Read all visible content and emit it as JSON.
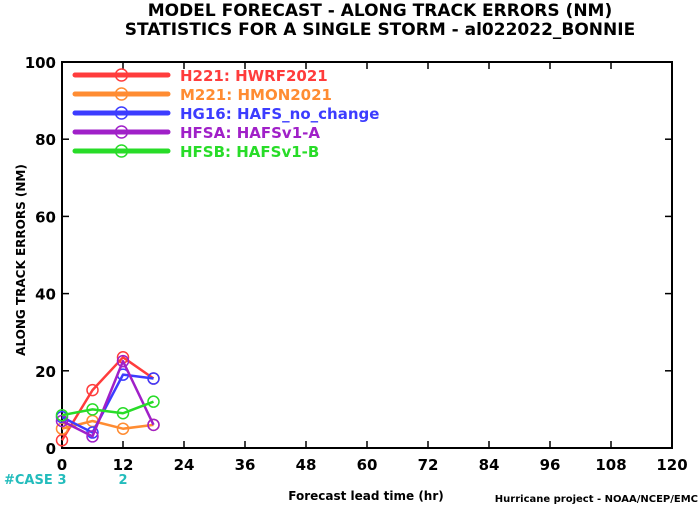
{
  "chart_data": {
    "type": "line",
    "title": "MODEL FORECAST - ALONG TRACK ERRORS (NM)",
    "subtitle": "STATISTICS FOR A SINGLE STORM - al022022_BONNIE",
    "xlabel": "Forecast lead time (hr)",
    "ylabel": "ALONG TRACK ERRORS (NM)",
    "xlim": [
      0,
      120
    ],
    "ylim": [
      0,
      100
    ],
    "x_ticks": [
      0,
      12,
      24,
      36,
      48,
      60,
      72,
      84,
      96,
      108,
      120
    ],
    "y_ticks": [
      0,
      20,
      40,
      60,
      80,
      100
    ],
    "legend_position": "top-left",
    "x": [
      0,
      6,
      12,
      18
    ],
    "series": [
      {
        "code": "H221",
        "label": "HWRF2021",
        "color": "#ff3c3c",
        "values": [
          2,
          15,
          23.5,
          18
        ]
      },
      {
        "code": "M221",
        "label": "HMON2021",
        "color": "#ff8c32",
        "values": [
          5,
          7,
          5,
          6
        ]
      },
      {
        "code": "HG16",
        "label": "HAFS_no_change",
        "color": "#3c3cff",
        "values": [
          8,
          4,
          19,
          18
        ]
      },
      {
        "code": "HFSA",
        "label": "HAFSv1-A",
        "color": "#a020c8",
        "values": [
          7,
          3,
          22.5,
          6
        ]
      },
      {
        "code": "HFSB",
        "label": "HAFSv1-B",
        "color": "#28dc28",
        "values": [
          8.5,
          10,
          9,
          12
        ]
      }
    ],
    "cases": {
      "label": "#CASE",
      "entries": [
        {
          "x": 0,
          "count": "3"
        },
        {
          "x": 12,
          "count": "2"
        }
      ]
    },
    "credit": "Hurricane project - NOAA/NCEP/EMC"
  }
}
